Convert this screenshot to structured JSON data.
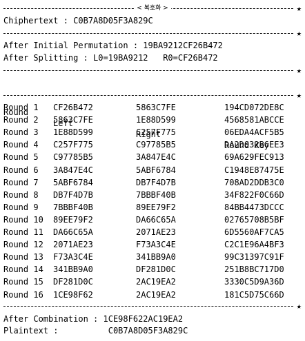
{
  "header_title": "< 복호화 >",
  "ciphertext_label": "Chiphertext : C0B7A8D05F3A829C",
  "initial_permutation": "After Initial Permutation : 19BA9212CF26B472",
  "splitting": "After Splitting : L0=19BA9212   R0=CF26B472",
  "table": {
    "headers": [
      "Round",
      "Left",
      "Right",
      "Round Key"
    ],
    "rows": [
      [
        "Round 1",
        "CF26B472",
        "5863C7FE",
        "194CD072DE8C"
      ],
      [
        "Round 2",
        "5863C7FE",
        "1E88D599",
        "4568581ABCCE"
      ],
      [
        "Round 3",
        "1E88D599",
        "C257F775",
        "06EDA4ACF5B5"
      ],
      [
        "Round 4",
        "C257F775",
        "C97785B5",
        "DA2D032B6EE3"
      ],
      [
        "Round 5",
        "C97785B5",
        "3A847E4C",
        "69A629FEC913"
      ],
      [
        "Round 6",
        "3A847E4C",
        "5ABF6784",
        "C1948E87475E"
      ],
      [
        "Round 7",
        "5ABF6784",
        "DB7F4D7B",
        "708AD2DDB3C0"
      ],
      [
        "Round 8",
        "DB7F4D7B",
        "7BBBF40B",
        "34F822F0C66D"
      ],
      [
        "Round 9",
        "7BBBF40B",
        "89EE79F2",
        "84BB4473DCCC"
      ],
      [
        "Round 10",
        "89EE79F2",
        "DA66C65A",
        "02765708B5BF"
      ],
      [
        "Round 11",
        "DA66C65A",
        "2071AE23",
        "6D5560AF7CA5"
      ],
      [
        "Round 12",
        "2071AE23",
        "F73A3C4E",
        "C2C1E96A4BF3"
      ],
      [
        "Round 13",
        "F73A3C4E",
        "341BB9A0",
        "99C31397C91F"
      ],
      [
        "Round 14",
        "341BB9A0",
        "DF281D0C",
        "251B8BC717D0"
      ],
      [
        "Round 15",
        "DF281D0C",
        "2AC19EA2",
        "3330C5D9A36D"
      ],
      [
        "Round 16",
        "1CE98F62",
        "2AC19EA2",
        "181C5D75C66D"
      ]
    ]
  },
  "combination": "After Combination : 1CE98F622AC19EA2",
  "plaintext": "Plaintext :          C0B7A8D05F3A829C",
  "separator_end_char": "★"
}
